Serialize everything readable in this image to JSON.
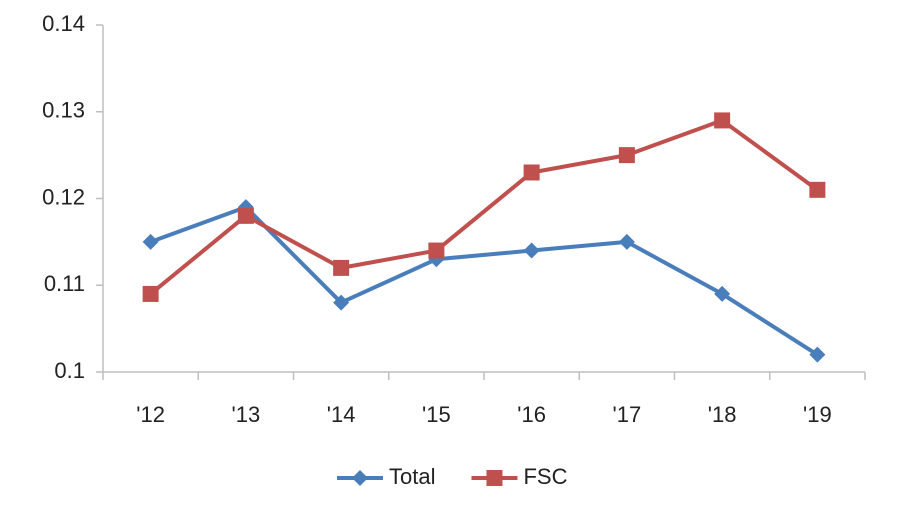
{
  "chart_data": {
    "type": "line",
    "categories": [
      "'12",
      "'13",
      "'14",
      "'15",
      "'16",
      "'17",
      "'18",
      "'19"
    ],
    "series": [
      {
        "name": "Total",
        "color": "#4a7ebb",
        "marker": "diamond",
        "values": [
          0.115,
          0.119,
          0.108,
          0.113,
          0.114,
          0.115,
          0.109,
          0.102
        ]
      },
      {
        "name": "FSC",
        "color": "#c0504d",
        "marker": "square",
        "values": [
          0.109,
          0.118,
          0.112,
          0.114,
          0.123,
          0.125,
          0.129,
          0.121
        ]
      }
    ],
    "ylim": [
      0.1,
      0.14
    ],
    "yticks": [
      0.1,
      0.11,
      0.12,
      0.13,
      0.14
    ],
    "grid": false,
    "legend": "bottom"
  }
}
